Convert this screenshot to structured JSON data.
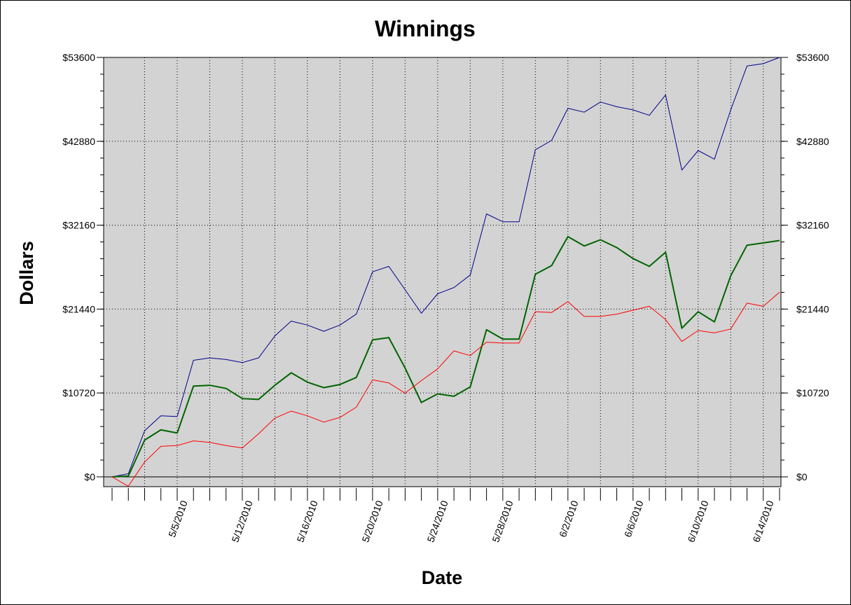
{
  "chart_data": {
    "type": "line",
    "title": "Winnings",
    "xlabel": "Date",
    "ylabel": "Dollars",
    "ylim": [
      -1200,
      53600
    ],
    "y_ticks": [
      0,
      10720,
      21440,
      32160,
      42880,
      53600
    ],
    "y_tick_labels": [
      "$0",
      "$10720",
      "$21440",
      "$32160",
      "$42880",
      "$53600"
    ],
    "x_tick_labels": [
      "5/5/2010",
      "5/12/2010",
      "5/16/2010",
      "5/20/2010",
      "5/24/2010",
      "5/28/2010",
      "6/2/2010",
      "6/6/2010",
      "6/10/2010",
      "6/14/2010"
    ],
    "x_label_indices": [
      4,
      8,
      12,
      16,
      20,
      24,
      28,
      32,
      36,
      40
    ],
    "x_count": 42,
    "grid": true,
    "series": [
      {
        "color": "#00008b",
        "width": 1,
        "values": [
          0,
          400,
          5900,
          7800,
          7700,
          14900,
          15200,
          15000,
          14600,
          15200,
          18000,
          19900,
          19400,
          18600,
          19400,
          20800,
          26200,
          26900,
          23900,
          20900,
          23400,
          24200,
          25800,
          33600,
          32600,
          32600,
          41800,
          43000,
          47100,
          46600,
          47900,
          47300,
          46900,
          46200,
          48800,
          39200,
          41700,
          40600,
          46900,
          52500,
          52800,
          53600
        ]
      },
      {
        "color": "#006400",
        "width": 2,
        "values": [
          0,
          100,
          4700,
          6000,
          5600,
          11600,
          11700,
          11300,
          10000,
          9900,
          11700,
          13300,
          12100,
          11400,
          11800,
          12700,
          17500,
          17800,
          13900,
          9500,
          10600,
          10300,
          11500,
          18800,
          17600,
          17600,
          25900,
          27000,
          30700,
          29500,
          30300,
          29300,
          27900,
          26900,
          28700,
          19000,
          21100,
          19800,
          25700,
          29600,
          29900,
          30200
        ]
      },
      {
        "color": "#ff0000",
        "width": 1,
        "values": [
          0,
          -1200,
          1900,
          3900,
          4000,
          4600,
          4400,
          4000,
          3700,
          5500,
          7500,
          8400,
          7800,
          7000,
          7600,
          8900,
          12400,
          12000,
          10700,
          12300,
          13800,
          16100,
          15500,
          17200,
          17100,
          17100,
          21100,
          21000,
          22400,
          20500,
          20500,
          20800,
          21300,
          21800,
          20100,
          17300,
          18700,
          18400,
          18900,
          22200,
          21800,
          23600
        ]
      }
    ]
  }
}
